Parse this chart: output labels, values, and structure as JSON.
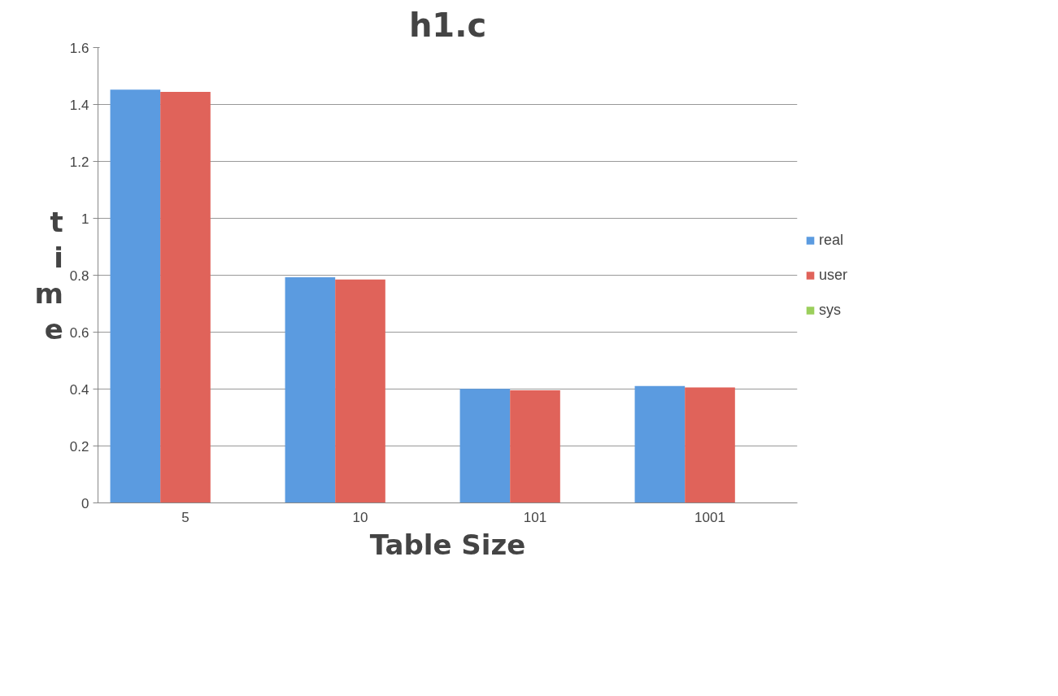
{
  "chart_data": {
    "type": "bar",
    "title": "h1.c",
    "xlabel": "Table Size",
    "ylabel": "time",
    "categories": [
      "5",
      "10",
      "101",
      "1001"
    ],
    "series": [
      {
        "name": "real",
        "color": "#5b9be0",
        "values": [
          1.452,
          0.793,
          0.401,
          0.411
        ]
      },
      {
        "name": "user",
        "color": "#e0635a",
        "values": [
          1.444,
          0.785,
          0.396,
          0.406
        ]
      },
      {
        "name": "sys",
        "color": "#9bcf5c",
        "values": [
          null,
          null,
          null,
          null
        ]
      }
    ],
    "ylim": [
      0,
      1.6
    ],
    "yticks": [
      0,
      {
        "value": 0.2,
        "label": "0.2"
      },
      {
        "value": 0.4,
        "label": "0.4"
      },
      {
        "value": 0.6,
        "label": "0.6"
      },
      {
        "value": 0.8,
        "label": "0.8"
      },
      1,
      {
        "value": 1.2,
        "label": "1.2"
      },
      {
        "value": 1.4,
        "label": "1.4"
      },
      {
        "value": 1.6,
        "label": "1.6"
      }
    ],
    "grid": "y",
    "legend": "right"
  }
}
